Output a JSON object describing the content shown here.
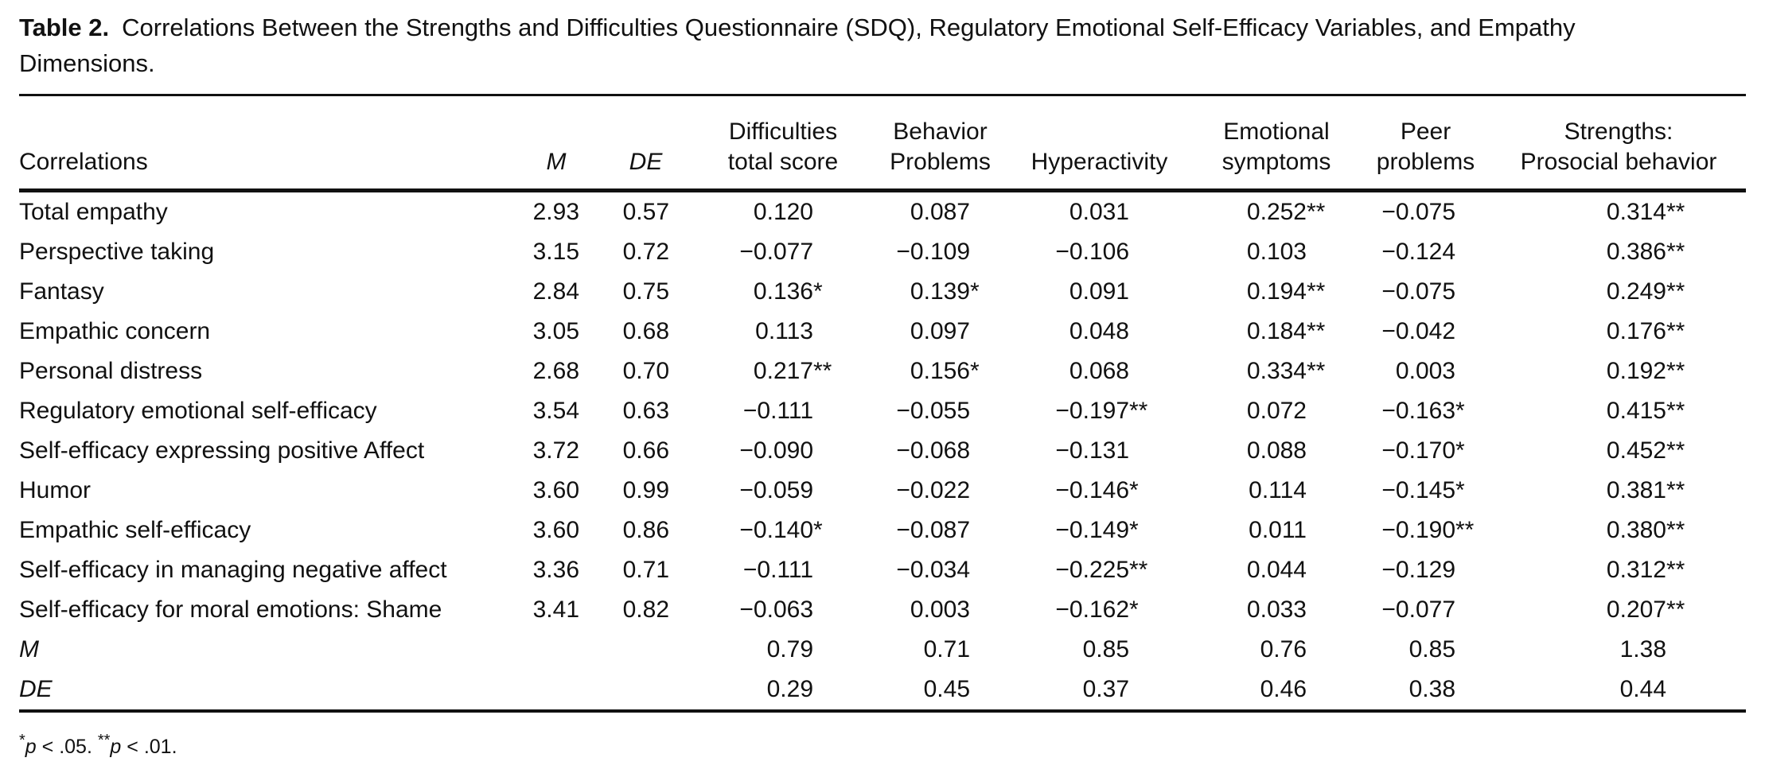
{
  "colors": {
    "ink": "#111111",
    "background": "#ffffff"
  },
  "title": {
    "label": "Table 2.",
    "text": "Correlations Between the Strengths and Difficulties Questionnaire (SDQ), Regulatory Emotional Self-Efficacy Variables, and Empathy Dimensions."
  },
  "table": {
    "columns": [
      {
        "key": "correlations",
        "label": "Correlations",
        "italic": false
      },
      {
        "key": "m",
        "label": "M",
        "italic": true
      },
      {
        "key": "de",
        "label": "DE",
        "italic": true
      },
      {
        "key": "difficulties-total-score",
        "label": "Difficulties\ntotal score",
        "italic": false
      },
      {
        "key": "behavior-problems",
        "label": "Behavior\nProblems",
        "italic": false
      },
      {
        "key": "hyperactivity",
        "label": "Hyperactivity",
        "italic": false
      },
      {
        "key": "emotional-symptoms",
        "label": "Emotional\nsymptoms",
        "italic": false
      },
      {
        "key": "peer-problems",
        "label": "Peer\nproblems",
        "italic": false
      },
      {
        "key": "strengths-prosocial-behavior",
        "label": "Strengths:\nProsocial behavior",
        "italic": false
      }
    ],
    "rows": [
      {
        "label": "Total empathy",
        "italic": false,
        "values": [
          "2.93",
          "0.57",
          "0.120",
          "0.087",
          "0.031",
          "0.252**",
          "−0.075",
          "0.314**"
        ]
      },
      {
        "label": "Perspective taking",
        "italic": false,
        "values": [
          "3.15",
          "0.72",
          "−0.077",
          "−0.109",
          "−0.106",
          "0.103",
          "−0.124",
          "0.386**"
        ]
      },
      {
        "label": "Fantasy",
        "italic": false,
        "values": [
          "2.84",
          "0.75",
          "0.136*",
          "0.139*",
          "0.091",
          "0.194**",
          "−0.075",
          "0.249**"
        ]
      },
      {
        "label": "Empathic concern",
        "italic": false,
        "values": [
          "3.05",
          "0.68",
          "0.113",
          "0.097",
          "0.048",
          "0.184**",
          "−0.042",
          "0.176**"
        ]
      },
      {
        "label": "Personal distress",
        "italic": false,
        "values": [
          "2.68",
          "0.70",
          "0.217**",
          "0.156*",
          "0.068",
          "0.334**",
          "0.003",
          "0.192**"
        ]
      },
      {
        "label": "Regulatory emotional self-efficacy",
        "italic": false,
        "values": [
          "3.54",
          "0.63",
          "−0.111",
          "−0.055",
          "−0.197**",
          "0.072",
          "−0.163*",
          "0.415**"
        ]
      },
      {
        "label": "Self-efficacy expressing positive Affect",
        "italic": false,
        "values": [
          "3.72",
          "0.66",
          "−0.090",
          "−0.068",
          "−0.131",
          "0.088",
          "−0.170*",
          "0.452**"
        ]
      },
      {
        "label": "Humor",
        "italic": false,
        "values": [
          "3.60",
          "0.99",
          "−0.059",
          "−0.022",
          "−0.146*",
          "0.114",
          "−0.145*",
          "0.381**"
        ]
      },
      {
        "label": "Empathic self-efficacy",
        "italic": false,
        "values": [
          "3.60",
          "0.86",
          "−0.140*",
          "−0.087",
          "−0.149*",
          "0.011",
          "−0.190**",
          "0.380**"
        ]
      },
      {
        "label": "Self-efficacy in managing negative affect",
        "italic": false,
        "values": [
          "3.36",
          "0.71",
          "−0.111",
          "−0.034",
          "−0.225**",
          "0.044",
          "−0.129",
          "0.312**"
        ]
      },
      {
        "label": "Self-efficacy for moral emotions: Shame",
        "italic": false,
        "values": [
          "3.41",
          "0.82",
          "−0.063",
          "0.003",
          "−0.162*",
          "0.033",
          "−0.077",
          "0.207**"
        ]
      },
      {
        "label": "M",
        "italic": true,
        "values": [
          "",
          "",
          "0.79",
          "0.71",
          "0.85",
          "0.76",
          "0.85",
          "1.38"
        ]
      },
      {
        "label": "DE",
        "italic": true,
        "values": [
          "",
          "",
          "0.29",
          "0.45",
          "0.37",
          "0.46",
          "0.38",
          "0.44"
        ]
      }
    ]
  },
  "footnote": {
    "star1": "*",
    "p1": "p",
    "cond1": " < .05. ",
    "star2": "**",
    "p2": "p",
    "cond2": " < .01."
  }
}
